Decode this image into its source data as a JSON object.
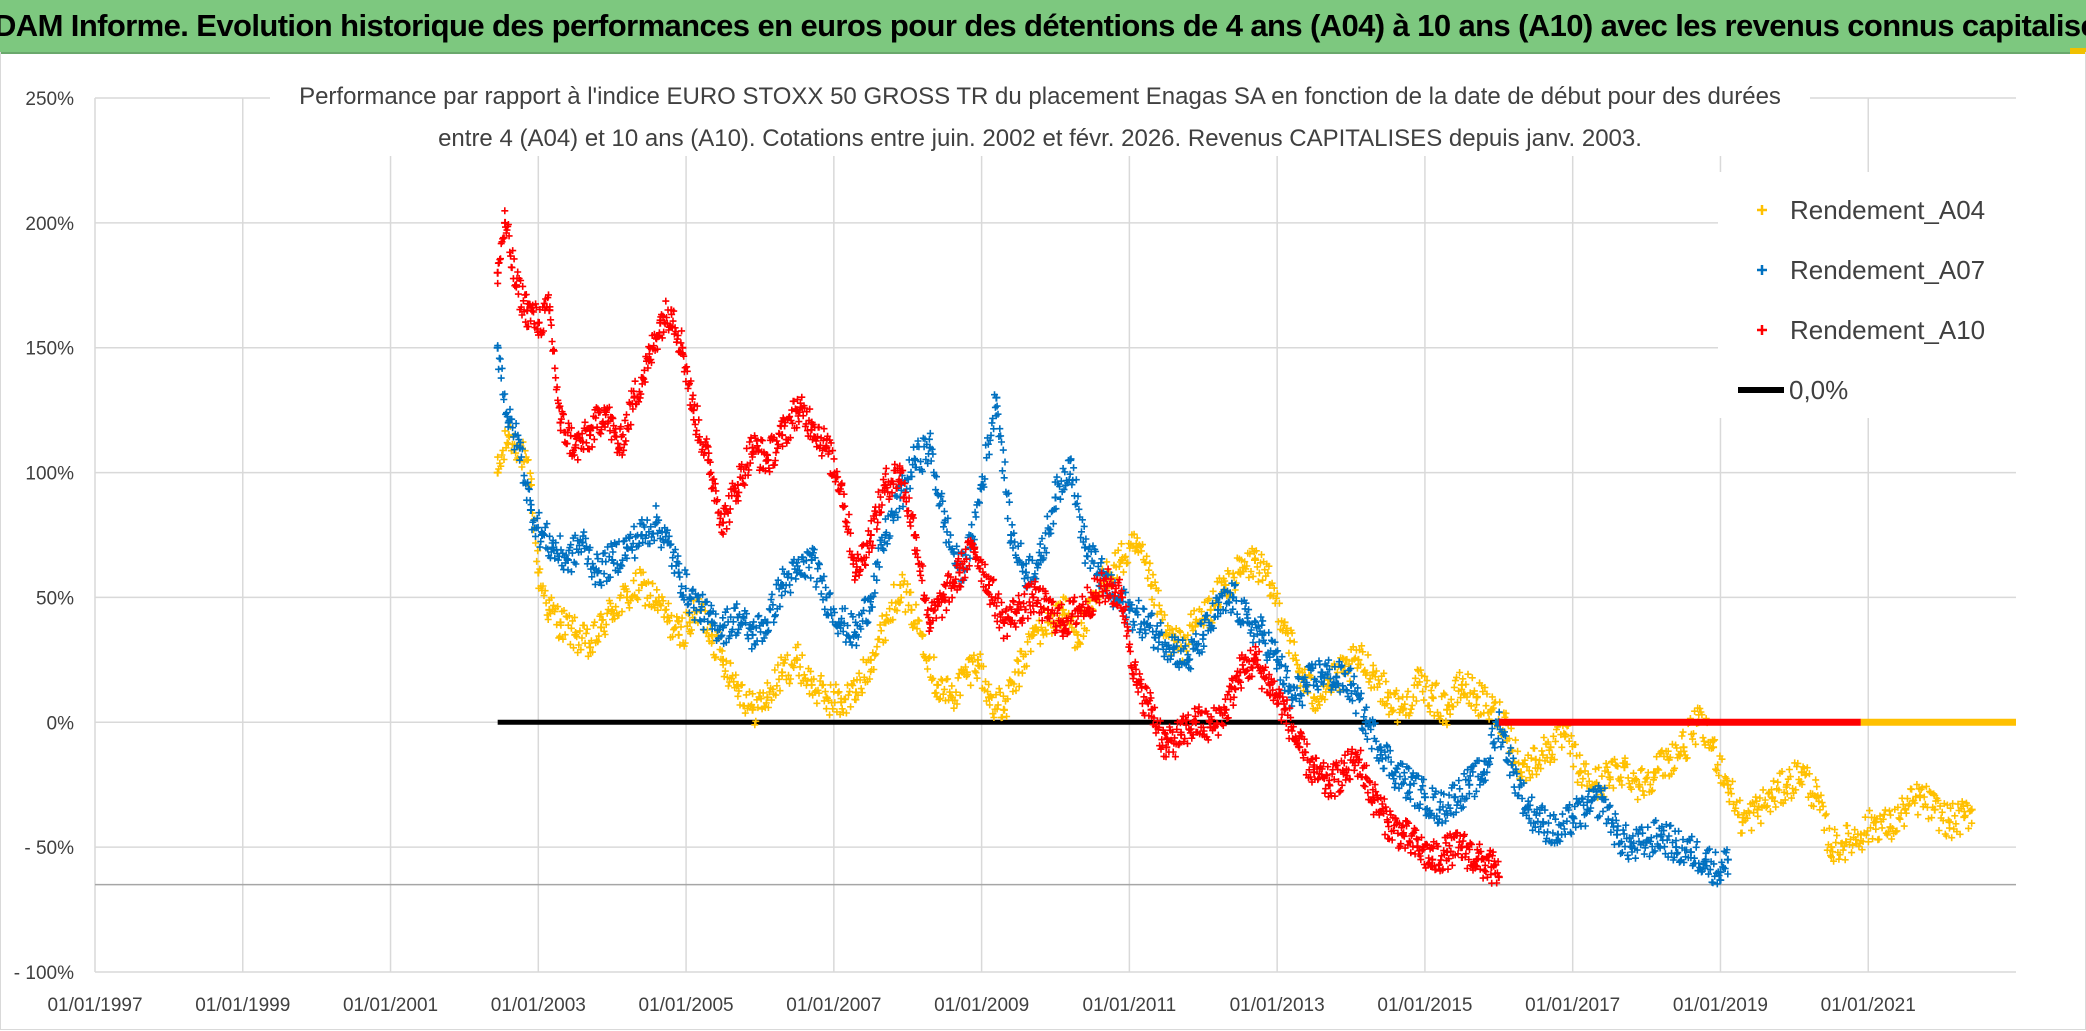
{
  "header": {
    "title": "ADAM Informe. Evolution historique des performances en euros pour des détentions de 4 ans (A04) à 10 ans (A10) avec les revenus connus capitalisés"
  },
  "chart_data": {
    "type": "scatter",
    "title_lines": [
      "Performance  par rapport à l'indice EURO STOXX 50 GROSS TR  du placement Enagas SA en fonction de la date de début pour des durées",
      "entre 4 (A04) et 10 ans (A10). Cotations entre juin. 2002 et févr. 2026. Revenus CAPITALISES depuis janv. 2003."
    ],
    "xlabel": "",
    "ylabel": "",
    "xlim": [
      1997.0,
      2023.0
    ],
    "ylim": [
      -100,
      250
    ],
    "x_ticks": [
      1997,
      1999,
      2001,
      2003,
      2005,
      2007,
      2009,
      2011,
      2013,
      2015,
      2017,
      2019,
      2021
    ],
    "x_tick_labels": [
      "01/01/1997",
      "01/01/1999",
      "01/01/2001",
      "01/01/2003",
      "01/01/2005",
      "01/01/2007",
      "01/01/2009",
      "01/01/2011",
      "01/01/2013",
      "01/01/2015",
      "01/01/2017",
      "01/01/2019",
      "01/01/2021"
    ],
    "y_ticks": [
      250,
      200,
      150,
      100,
      50,
      0,
      -50,
      -100
    ],
    "y_tick_labels": [
      "250%",
      "200%",
      "150%",
      "100%",
      "50%",
      "0%",
      "- 50%",
      "- 100%"
    ],
    "grid": true,
    "legend_position": "top-right",
    "series": [
      {
        "name": "Rendement_A04",
        "color": "#ffc000",
        "marker": "plus",
        "x": [
          2002.45,
          2002.6,
          2002.75,
          2002.9,
          2003.0,
          2003.15,
          2003.3,
          2003.5,
          2003.7,
          2003.85,
          2004.0,
          2004.2,
          2004.4,
          2004.6,
          2004.75,
          2004.9,
          2005.05,
          2005.2,
          2005.35,
          2005.5,
          2005.7,
          2005.9,
          2006.1,
          2006.3,
          2006.5,
          2006.7,
          2006.9,
          2007.1,
          2007.3,
          2007.5,
          2007.7,
          2007.9,
          2008.05,
          2008.2,
          2008.4,
          2008.6,
          2008.8,
          2008.95,
          2009.1,
          2009.3,
          2009.5,
          2009.7,
          2009.9,
          2010.1,
          2010.3,
          2010.5,
          2010.7,
          2010.9,
          2011.1,
          2011.3,
          2011.5,
          2011.7,
          2011.9,
          2012.1,
          2012.3,
          2012.5,
          2012.7,
          2012.9,
          2013.1,
          2013.3,
          2013.5,
          2013.7,
          2013.9,
          2014.1,
          2014.3,
          2014.5,
          2014.7,
          2014.9,
          2015.1,
          2015.3,
          2015.5,
          2015.7,
          2015.9,
          2016.1,
          2016.3,
          2016.5,
          2016.7,
          2016.9,
          2017.1,
          2017.3,
          2017.5,
          2017.7,
          2017.9,
          2018.1,
          2018.3,
          2018.5,
          2018.7,
          2018.9,
          2019.1,
          2019.3,
          2019.5,
          2019.7,
          2019.9,
          2020.1,
          2020.3,
          2020.5,
          2020.7,
          2020.9,
          2021.1,
          2021.3,
          2021.5,
          2021.7,
          2021.9,
          2022.1,
          2022.3,
          2022.4
        ],
        "y": [
          100,
          115,
          110,
          95,
          60,
          45,
          40,
          35,
          30,
          38,
          45,
          50,
          55,
          48,
          42,
          35,
          40,
          45,
          35,
          25,
          15,
          5,
          10,
          20,
          25,
          15,
          10,
          8,
          12,
          25,
          40,
          55,
          45,
          35,
          15,
          10,
          20,
          25,
          10,
          5,
          20,
          35,
          40,
          45,
          35,
          45,
          60,
          65,
          70,
          55,
          35,
          30,
          40,
          45,
          55,
          60,
          65,
          55,
          40,
          20,
          10,
          15,
          20,
          25,
          20,
          10,
          5,
          15,
          10,
          5,
          15,
          10,
          5,
          0,
          -20,
          -15,
          -10,
          -5,
          -20,
          -25,
          -22,
          -18,
          -25,
          -20,
          -15,
          -10,
          0,
          -10,
          -25,
          -40,
          -35,
          -30,
          -25,
          -20,
          -30,
          -50,
          -48,
          -45,
          -40,
          -42,
          -35,
          -30,
          -35,
          -40,
          -38,
          -35
        ]
      },
      {
        "name": "Rendement_A07",
        "color": "#0070c0",
        "marker": "plus",
        "x": [
          2002.45,
          2002.6,
          2002.75,
          2002.9,
          2003.05,
          2003.2,
          2003.4,
          2003.6,
          2003.8,
          2004.0,
          2004.2,
          2004.4,
          2004.6,
          2004.75,
          2004.9,
          2005.05,
          2005.2,
          2005.35,
          2005.5,
          2005.7,
          2005.9,
          2006.1,
          2006.3,
          2006.5,
          2006.7,
          2006.9,
          2007.1,
          2007.3,
          2007.5,
          2007.7,
          2007.9,
          2008.1,
          2008.3,
          2008.5,
          2008.7,
          2008.85,
          2009.0,
          2009.2,
          2009.4,
          2009.6,
          2009.8,
          2010.0,
          2010.2,
          2010.4,
          2010.6,
          2010.8,
          2011.0,
          2011.2,
          2011.4,
          2011.6,
          2011.8,
          2012.0,
          2012.2,
          2012.4,
          2012.6,
          2012.8,
          2013.0,
          2013.2,
          2013.4,
          2013.6,
          2013.8,
          2014.0,
          2014.2,
          2014.4,
          2014.6,
          2014.8,
          2015.0,
          2015.2,
          2015.4,
          2015.6,
          2015.8,
          2016.0,
          2016.2,
          2016.4,
          2016.6,
          2016.8,
          2017.0,
          2017.2,
          2017.4,
          2017.6,
          2017.8,
          2018.0,
          2018.2,
          2018.4,
          2018.6,
          2018.8,
          2019.0,
          2019.1
        ],
        "y": [
          150,
          120,
          110,
          85,
          75,
          70,
          65,
          72,
          60,
          65,
          70,
          75,
          80,
          72,
          60,
          50,
          45,
          40,
          38,
          42,
          35,
          40,
          55,
          60,
          65,
          50,
          40,
          35,
          50,
          75,
          90,
          105,
          110,
          80,
          60,
          70,
          95,
          130,
          75,
          60,
          65,
          90,
          105,
          70,
          60,
          50,
          45,
          40,
          35,
          30,
          25,
          35,
          45,
          50,
          40,
          35,
          25,
          10,
          15,
          20,
          18,
          15,
          0,
          -10,
          -20,
          -25,
          -30,
          -35,
          -30,
          -25,
          -20,
          0,
          -20,
          -35,
          -40,
          -45,
          -38,
          -35,
          -30,
          -45,
          -50,
          -48,
          -45,
          -50,
          -52,
          -55,
          -60,
          -55
        ]
      },
      {
        "name": "Rendement_A10",
        "color": "#ff0000",
        "marker": "plus",
        "x": [
          2002.45,
          2002.55,
          2002.7,
          2002.85,
          2003.0,
          2003.15,
          2003.3,
          2003.5,
          2003.7,
          2003.9,
          2004.1,
          2004.3,
          2004.5,
          2004.65,
          2004.8,
          2004.95,
          2005.1,
          2005.3,
          2005.5,
          2005.7,
          2005.9,
          2006.1,
          2006.3,
          2006.5,
          2006.7,
          2006.9,
          2007.1,
          2007.3,
          2007.5,
          2007.7,
          2007.9,
          2008.1,
          2008.3,
          2008.5,
          2008.7,
          2008.9,
          2009.1,
          2009.3,
          2009.5,
          2009.7,
          2009.9,
          2010.1,
          2010.3,
          2010.5,
          2010.7,
          2010.9,
          2011.1,
          2011.3,
          2011.5,
          2011.7,
          2011.9,
          2012.1,
          2012.3,
          2012.5,
          2012.7,
          2012.9,
          2013.1,
          2013.3,
          2013.5,
          2013.7,
          2013.9,
          2014.1,
          2014.3,
          2014.5,
          2014.7,
          2014.9,
          2015.1,
          2015.3,
          2015.5,
          2015.7,
          2015.9,
          2016.0
        ],
        "y": [
          180,
          200,
          175,
          165,
          160,
          165,
          120,
          110,
          115,
          125,
          110,
          130,
          145,
          160,
          165,
          150,
          125,
          105,
          80,
          95,
          110,
          105,
          115,
          125,
          120,
          110,
          95,
          60,
          75,
          95,
          100,
          75,
          40,
          50,
          60,
          70,
          55,
          40,
          45,
          50,
          45,
          40,
          45,
          50,
          55,
          50,
          15,
          5,
          -10,
          -5,
          0,
          -2,
          5,
          20,
          25,
          15,
          5,
          -10,
          -20,
          -25,
          -20,
          -15,
          -30,
          -40,
          -45,
          -50,
          -55,
          -52,
          -50,
          -55,
          -58,
          -62
        ]
      },
      {
        "name": "0,0%",
        "color": "#000000",
        "marker": "line",
        "x": [
          2002.45,
          2016.0
        ],
        "y": [
          0,
          0
        ]
      }
    ],
    "annotations": [
      {
        "kind": "red-band-on-zero",
        "color": "#ff0000",
        "x": [
          2016.0,
          2020.9
        ],
        "y": [
          0,
          0
        ]
      },
      {
        "kind": "yellow-band-on-zero",
        "color": "#ffc000",
        "x": [
          2020.9,
          2023.0
        ],
        "y": [
          0,
          0
        ]
      }
    ]
  },
  "colors": {
    "banner_bg": "#7dc87f",
    "grid": "#d9d9d9",
    "text": "#404040"
  }
}
